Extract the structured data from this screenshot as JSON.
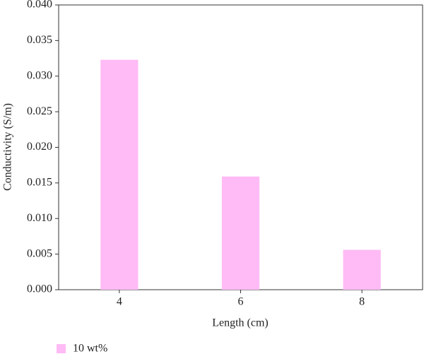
{
  "chart_data": {
    "type": "bar",
    "x_label": "Length (cm)",
    "y_label": "Conductivity (S/m)",
    "categories": [
      "4",
      "6",
      "8"
    ],
    "series": [
      {
        "name": "10 wt%",
        "color": "#ffbbf5",
        "values": [
          0.0323,
          0.0159,
          0.0056
        ]
      }
    ],
    "ylim": [
      0,
      0.04
    ],
    "yticks": [
      {
        "value": 0,
        "label": "0.000"
      },
      {
        "value": 0.005,
        "label": "0.005"
      },
      {
        "value": 0.01,
        "label": "0.010"
      },
      {
        "value": 0.015,
        "label": "0.015"
      },
      {
        "value": 0.02,
        "label": "0.020"
      },
      {
        "value": 0.025,
        "label": "0.025"
      },
      {
        "value": 0.03,
        "label": "0.030"
      },
      {
        "value": 0.035,
        "label": "0.035"
      },
      {
        "value": 0.04,
        "label": "0.040"
      }
    ],
    "legend": "bottom-left"
  }
}
